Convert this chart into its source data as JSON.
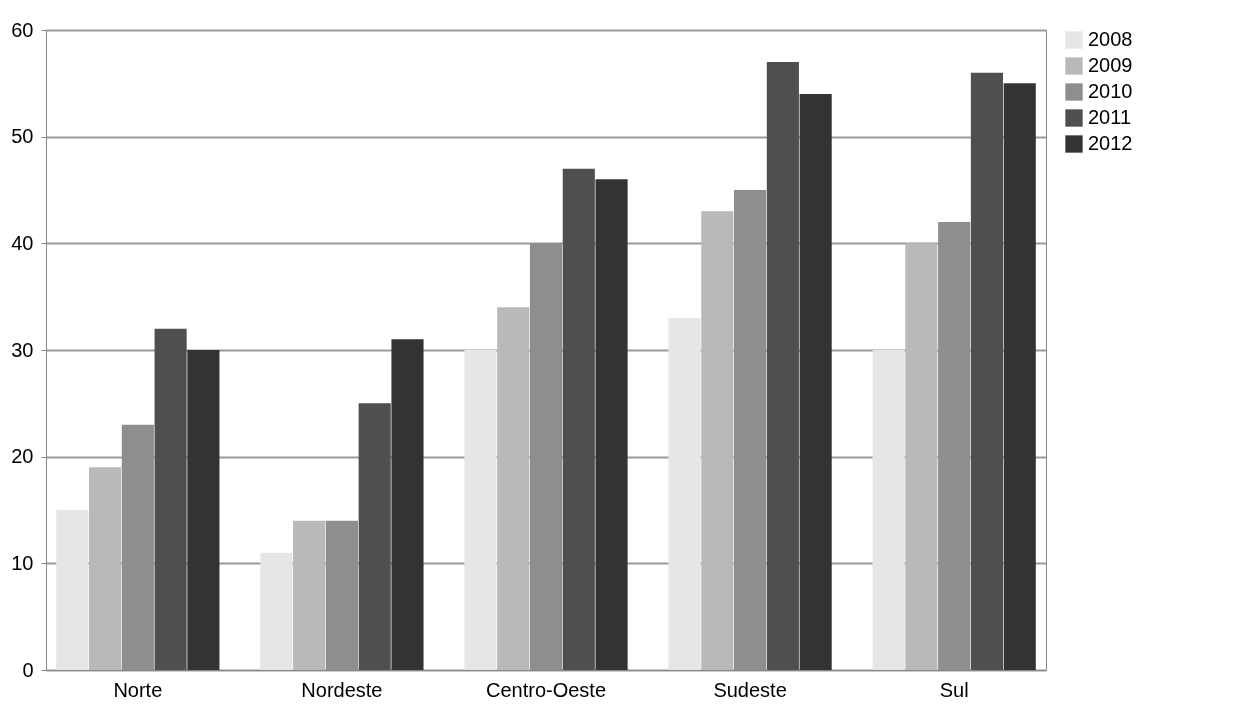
{
  "chart_data": {
    "type": "bar",
    "categories": [
      "Norte",
      "Nordeste",
      "Centro-Oeste",
      "Sudeste",
      "Sul"
    ],
    "series": [
      {
        "name": "2008",
        "color": "#e6e6e6",
        "values": [
          15,
          11,
          30,
          33,
          30
        ]
      },
      {
        "name": "2009",
        "color": "#b9b9b9",
        "values": [
          19,
          14,
          34,
          43,
          40
        ]
      },
      {
        "name": "2010",
        "color": "#8e8e8e",
        "values": [
          23,
          14,
          40,
          45,
          42
        ]
      },
      {
        "name": "2011",
        "color": "#4f4f4f",
        "values": [
          32,
          25,
          47,
          57,
          56
        ]
      },
      {
        "name": "2012",
        "color": "#333333",
        "values": [
          30,
          31,
          46,
          54,
          55
        ]
      }
    ],
    "ylim": [
      0,
      60
    ],
    "yticks": [
      0,
      10,
      20,
      30,
      40,
      50,
      60
    ],
    "grid": "y",
    "legend": "right"
  }
}
